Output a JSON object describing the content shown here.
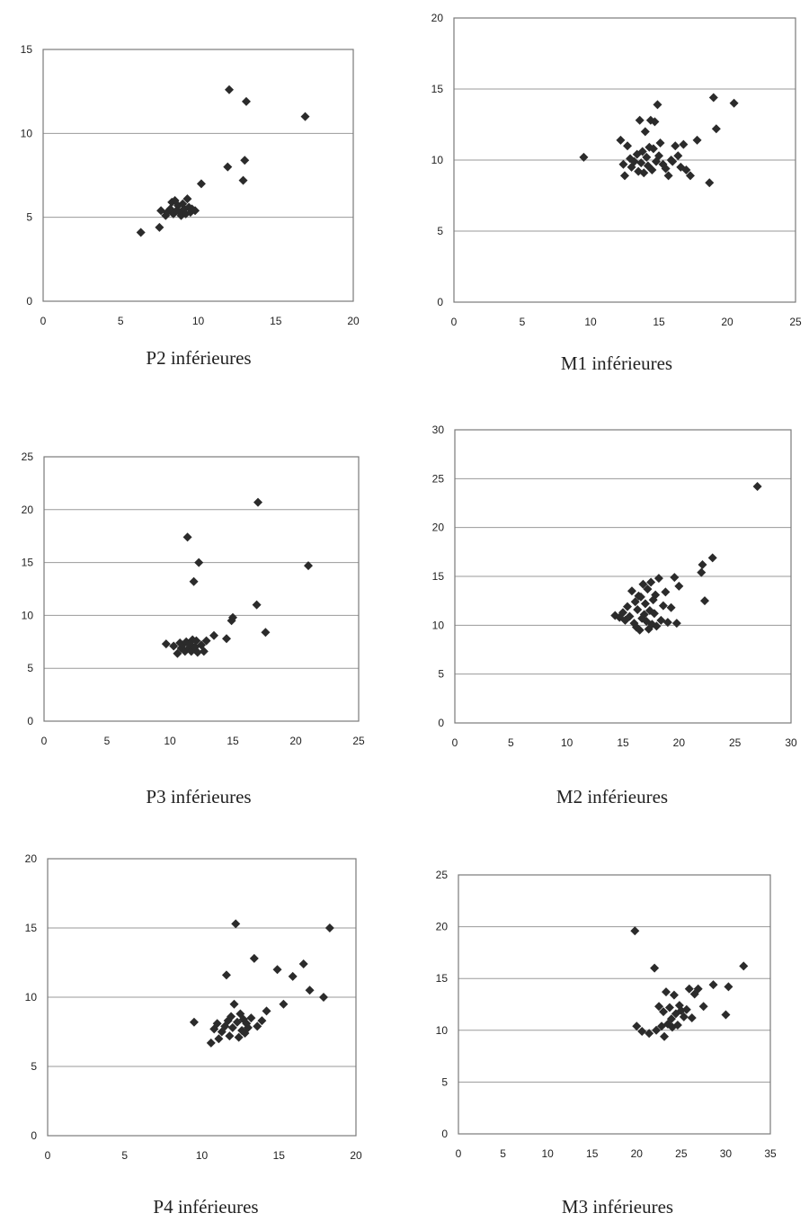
{
  "chart_data": [
    {
      "type": "scatter",
      "caption": "P2 inférieures",
      "xlim": [
        0,
        20
      ],
      "xticks": [
        0,
        5,
        10,
        15,
        20
      ],
      "ylim": [
        0,
        15
      ],
      "yticks": [
        0,
        5,
        10,
        15
      ],
      "grid": "horizontal",
      "x": [
        6.3,
        7.5,
        7.6,
        7.9,
        8.0,
        8.2,
        8.3,
        8.4,
        8.5,
        8.6,
        8.7,
        8.8,
        8.9,
        9.0,
        9.1,
        9.2,
        9.3,
        9.4,
        9.5,
        9.6,
        9.8,
        10.2,
        11.9,
        12.0,
        12.9,
        13.0,
        13.1,
        16.9
      ],
      "y": [
        4.1,
        4.4,
        5.4,
        5.1,
        5.3,
        5.5,
        5.9,
        5.2,
        6.0,
        5.4,
        5.7,
        5.3,
        5.1,
        5.8,
        5.5,
        5.2,
        6.1,
        5.6,
        5.3,
        5.5,
        5.4,
        7.0,
        8.0,
        12.6,
        7.2,
        8.4,
        11.9,
        11.0
      ]
    },
    {
      "type": "scatter",
      "caption": "M1 inférieures",
      "xlim": [
        0,
        25
      ],
      "xticks": [
        0,
        5,
        10,
        15,
        20,
        25
      ],
      "ylim": [
        0,
        20
      ],
      "yticks": [
        0,
        5,
        10,
        15,
        20
      ],
      "grid": "horizontal",
      "x": [
        9.5,
        12.2,
        12.4,
        12.5,
        12.7,
        12.9,
        13.0,
        13.2,
        13.4,
        13.5,
        13.6,
        13.7,
        13.8,
        13.9,
        14.0,
        14.1,
        14.2,
        14.3,
        14.4,
        14.5,
        14.6,
        14.7,
        14.8,
        14.9,
        15.0,
        15.1,
        15.3,
        15.5,
        15.7,
        15.9,
        16.0,
        16.2,
        16.4,
        16.6,
        16.8,
        17.0,
        17.3,
        17.8,
        18.7,
        19.0,
        19.2,
        20.5
      ],
      "y": [
        10.2,
        11.4,
        9.7,
        8.9,
        11.0,
        10.1,
        9.5,
        9.9,
        10.4,
        9.2,
        12.8,
        9.8,
        10.6,
        9.1,
        12.0,
        10.2,
        9.6,
        10.9,
        12.8,
        9.3,
        10.8,
        12.7,
        9.9,
        13.9,
        10.3,
        11.2,
        9.7,
        9.4,
        8.9,
        10.0,
        9.9,
        11.0,
        10.3,
        9.5,
        11.1,
        9.3,
        8.9,
        11.4,
        8.4,
        14.4,
        12.2,
        14.0
      ]
    },
    {
      "type": "scatter",
      "caption": "P3 inférieures",
      "xlim": [
        0,
        25
      ],
      "xticks": [
        0,
        5,
        10,
        15,
        20,
        25
      ],
      "ylim": [
        0,
        25
      ],
      "yticks": [
        0,
        5,
        10,
        15,
        20,
        25
      ],
      "grid": "horizontal",
      "x": [
        9.7,
        10.3,
        10.6,
        10.8,
        10.9,
        11.0,
        11.2,
        11.3,
        11.4,
        11.5,
        11.6,
        11.7,
        11.8,
        11.9,
        12.0,
        12.1,
        12.2,
        12.3,
        12.5,
        12.7,
        12.9,
        13.5,
        14.5,
        14.9,
        15.0,
        16.9,
        17.0,
        17.6,
        21.0
      ],
      "y": [
        7.3,
        7.1,
        6.4,
        7.4,
        6.9,
        7.2,
        6.6,
        7.5,
        17.4,
        6.9,
        7.3,
        6.6,
        7.7,
        13.2,
        7.0,
        7.6,
        6.5,
        15.0,
        7.2,
        6.6,
        7.6,
        8.1,
        7.8,
        9.5,
        9.8,
        11.0,
        20.7,
        8.4,
        14.7
      ]
    },
    {
      "type": "scatter",
      "caption": "M2 inférieures",
      "xlim": [
        0,
        30
      ],
      "xticks": [
        0,
        5,
        10,
        15,
        20,
        25,
        30
      ],
      "ylim": [
        0,
        30
      ],
      "yticks": [
        0,
        5,
        10,
        15,
        20,
        25,
        30
      ],
      "grid": "horizontal",
      "x": [
        14.3,
        14.7,
        15.0,
        15.2,
        15.4,
        15.6,
        15.8,
        16.0,
        16.1,
        16.2,
        16.3,
        16.4,
        16.5,
        16.6,
        16.7,
        16.8,
        16.9,
        17.0,
        17.1,
        17.2,
        17.3,
        17.4,
        17.5,
        17.6,
        17.7,
        17.8,
        17.9,
        18.0,
        18.2,
        18.4,
        18.6,
        18.8,
        19.0,
        19.3,
        19.6,
        19.8,
        20.0,
        22.0,
        22.1,
        22.3,
        23.0,
        27.0
      ],
      "y": [
        11.0,
        10.8,
        11.3,
        10.5,
        11.9,
        10.9,
        13.5,
        10.2,
        12.4,
        9.8,
        11.6,
        13.0,
        9.5,
        12.9,
        10.7,
        14.2,
        11.1,
        12.2,
        10.4,
        13.7,
        9.6,
        11.5,
        14.4,
        10.1,
        12.6,
        11.2,
        13.1,
        9.9,
        14.8,
        10.5,
        12.0,
        13.4,
        10.3,
        11.8,
        14.9,
        10.2,
        14.0,
        15.4,
        16.2,
        12.5,
        16.9,
        24.2
      ]
    },
    {
      "type": "scatter",
      "caption": "P4 inférieures",
      "xlim": [
        0,
        20
      ],
      "xticks": [
        0,
        5,
        10,
        15,
        20
      ],
      "ylim": [
        0,
        20
      ],
      "yticks": [
        0,
        5,
        10,
        15,
        20
      ],
      "grid": "horizontal",
      "x": [
        9.5,
        10.6,
        10.8,
        11.0,
        11.1,
        11.3,
        11.5,
        11.6,
        11.7,
        11.8,
        11.9,
        12.0,
        12.1,
        12.2,
        12.3,
        12.4,
        12.5,
        12.6,
        12.7,
        12.8,
        12.9,
        13.0,
        13.2,
        13.4,
        13.6,
        13.9,
        14.2,
        14.9,
        15.3,
        15.9,
        16.6,
        17.0,
        17.9,
        18.3
      ],
      "y": [
        8.2,
        6.7,
        7.7,
        8.1,
        7.0,
        7.5,
        7.9,
        11.6,
        8.3,
        7.2,
        8.6,
        7.8,
        9.5,
        15.3,
        8.2,
        7.1,
        8.8,
        7.6,
        8.4,
        7.4,
        8.1,
        7.8,
        8.5,
        12.8,
        7.9,
        8.3,
        9.0,
        12.0,
        9.5,
        11.5,
        12.4,
        10.5,
        10.0,
        15.0
      ]
    },
    {
      "type": "scatter",
      "caption": "M3 inférieures",
      "xlim": [
        0,
        35
      ],
      "xticks": [
        0,
        5,
        10,
        15,
        20,
        25,
        30,
        35
      ],
      "ylim": [
        0,
        25
      ],
      "yticks": [
        0,
        5,
        10,
        15,
        20,
        25
      ],
      "grid": "horizontal",
      "x": [
        19.8,
        20.0,
        20.6,
        21.4,
        22.0,
        22.2,
        22.5,
        22.8,
        23.0,
        23.1,
        23.3,
        23.5,
        23.7,
        23.9,
        24.0,
        24.2,
        24.4,
        24.6,
        24.8,
        25.0,
        25.3,
        25.6,
        25.9,
        26.2,
        26.5,
        26.9,
        27.5,
        28.6,
        30.0,
        30.3,
        32.0
      ],
      "y": [
        19.6,
        10.4,
        9.9,
        9.7,
        16.0,
        10.0,
        12.3,
        10.4,
        11.8,
        9.4,
        13.7,
        10.6,
        12.2,
        11.1,
        10.3,
        13.4,
        11.6,
        10.5,
        12.4,
        11.9,
        11.3,
        12.0,
        14.0,
        11.2,
        13.5,
        14.0,
        12.3,
        14.4,
        11.5,
        14.2,
        16.2
      ]
    }
  ]
}
